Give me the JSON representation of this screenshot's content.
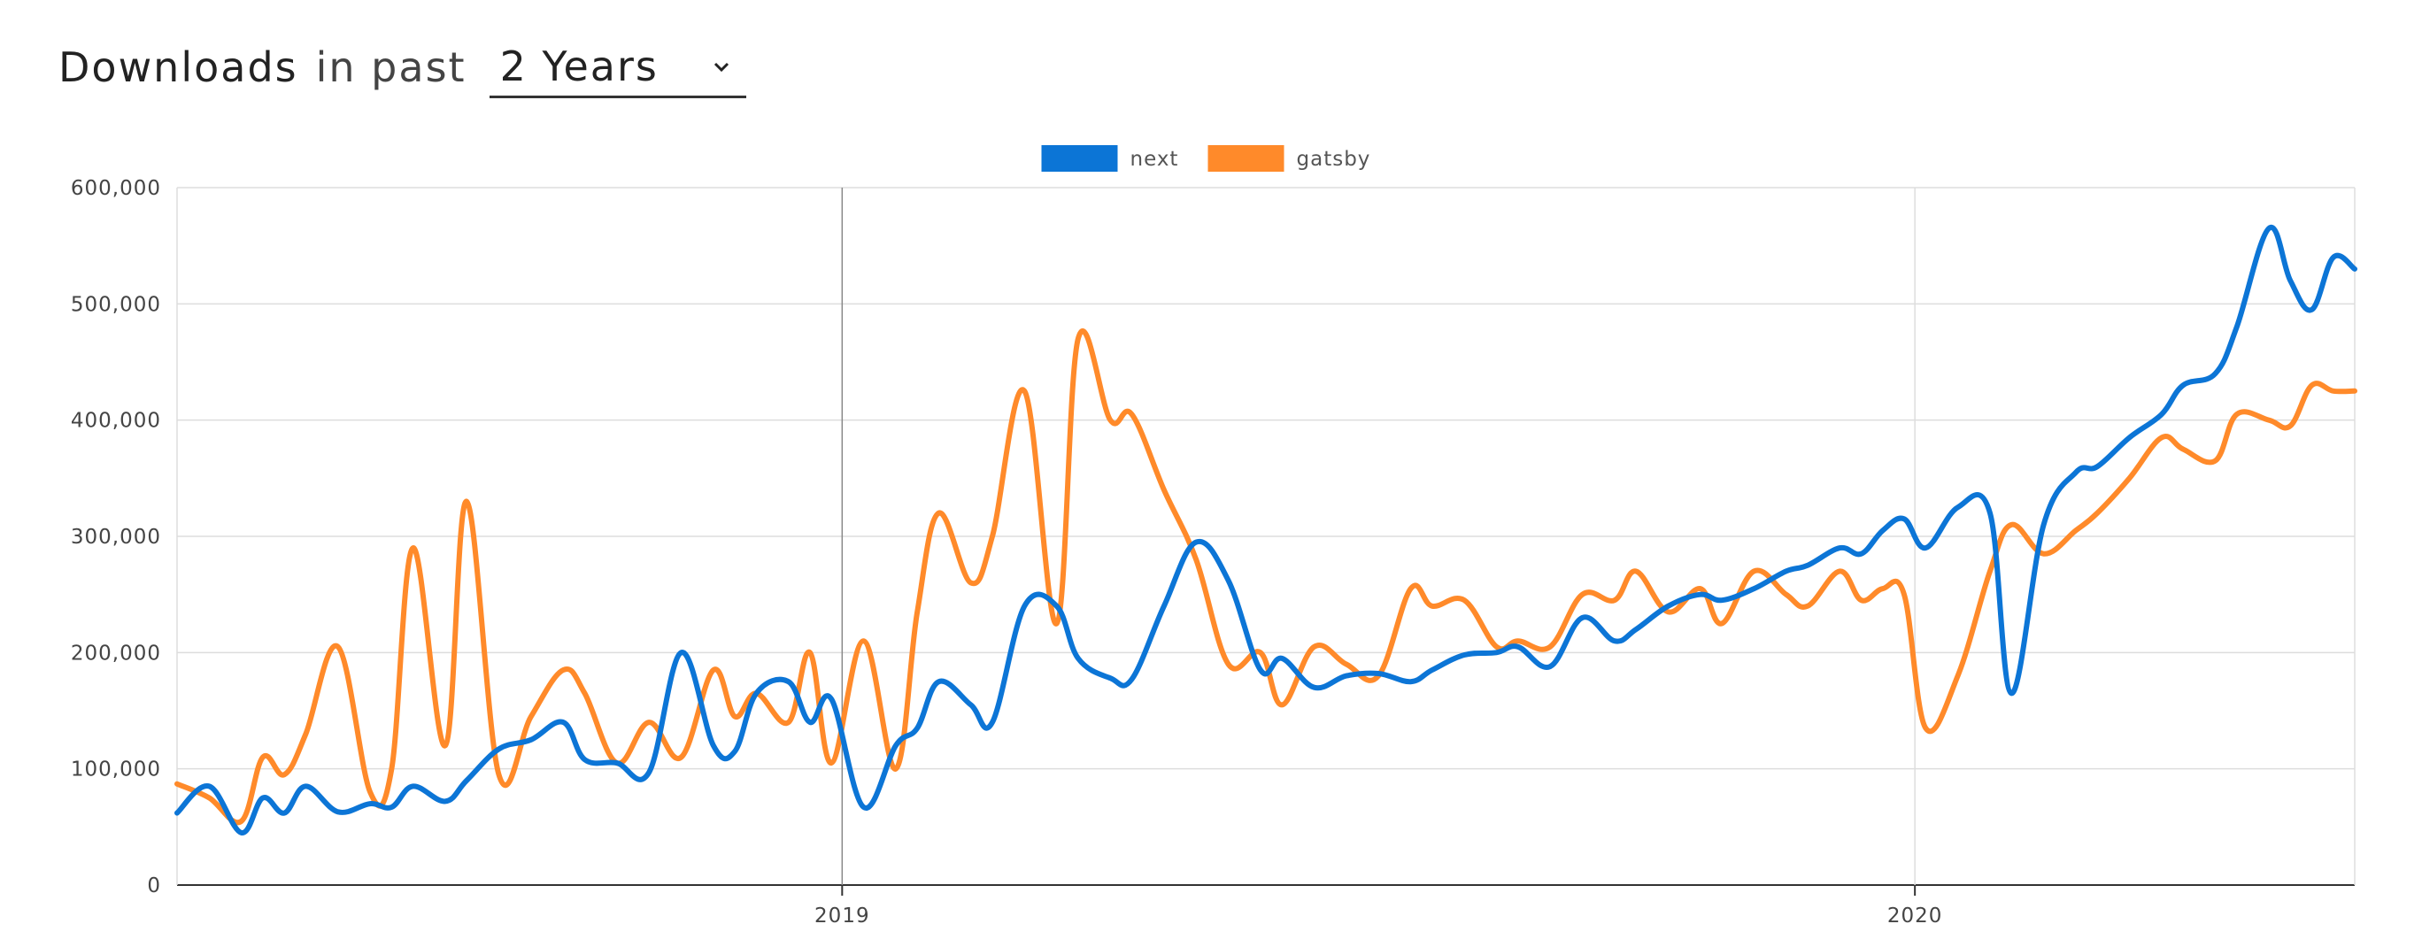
{
  "header": {
    "title": "Downloads",
    "subtitle": "in past",
    "period": {
      "selected": "2 Years",
      "options": [
        "2 Years"
      ]
    }
  },
  "chart_data": {
    "type": "line",
    "xlim": [
      2018.38,
      2020.41
    ],
    "ylim": [
      0,
      600000
    ],
    "grid": true,
    "legend_position": "top",
    "x_ticks": [
      {
        "value": 2019,
        "label": "2019"
      },
      {
        "value": 2020,
        "label": "2020"
      }
    ],
    "y_ticks": [
      {
        "value": 0,
        "label": "0"
      },
      {
        "value": 100000,
        "label": "100,000"
      },
      {
        "value": 200000,
        "label": "200,000"
      },
      {
        "value": 300000,
        "label": "300,000"
      },
      {
        "value": 400000,
        "label": "400,000"
      },
      {
        "value": 500000,
        "label": "500,000"
      },
      {
        "value": 600000,
        "label": "600,000"
      }
    ],
    "x": [
      2018.38,
      2018.41,
      2018.44,
      2018.46,
      2018.48,
      2018.5,
      2018.53,
      2018.56,
      2018.58,
      2018.6,
      2018.63,
      2018.65,
      2018.68,
      2018.71,
      2018.74,
      2018.76,
      2018.79,
      2018.82,
      2018.85,
      2018.88,
      2018.9,
      2018.92,
      2018.95,
      2018.97,
      2018.99,
      2019.02,
      2019.05,
      2019.07,
      2019.09,
      2019.12,
      2019.14,
      2019.17,
      2019.2,
      2019.22,
      2019.25,
      2019.27,
      2019.3,
      2019.33,
      2019.36,
      2019.39,
      2019.41,
      2019.44,
      2019.47,
      2019.5,
      2019.53,
      2019.55,
      2019.58,
      2019.61,
      2019.63,
      2019.66,
      2019.69,
      2019.72,
      2019.74,
      2019.77,
      2019.8,
      2019.82,
      2019.85,
      2019.88,
      2019.9,
      2019.93,
      2019.95,
      2019.97,
      2019.99,
      2020.01,
      2020.04,
      2020.07,
      2020.09,
      2020.12,
      2020.15,
      2020.17,
      2020.2,
      2020.23,
      2020.25,
      2020.28,
      2020.3,
      2020.33,
      2020.35,
      2020.37,
      2020.39,
      2020.41
    ],
    "series": [
      {
        "name": "next",
        "color": "#0c75d6",
        "values": [
          62000,
          85000,
          45000,
          75000,
          62000,
          85000,
          63000,
          70000,
          67000,
          85000,
          72000,
          90000,
          117000,
          125000,
          140000,
          108000,
          105000,
          97000,
          200000,
          120000,
          115000,
          165000,
          175000,
          140000,
          160000,
          67000,
          120000,
          135000,
          175000,
          155000,
          140000,
          240000,
          240000,
          195000,
          178000,
          177000,
          240000,
          295000,
          262000,
          185000,
          195000,
          170000,
          180000,
          182000,
          175000,
          185000,
          198000,
          200000,
          205000,
          188000,
          230000,
          210000,
          220000,
          240000,
          250000,
          245000,
          255000,
          270000,
          275000,
          290000,
          285000,
          305000,
          315000,
          290000,
          325000,
          320000,
          165000,
          310000,
          355000,
          360000,
          385000,
          405000,
          430000,
          440000,
          480000,
          565000,
          520000,
          495000,
          540000,
          530000
        ]
      },
      {
        "name": "gatsby",
        "color": "#ff8a2a",
        "values": [
          87000,
          75000,
          55000,
          110000,
          95000,
          130000,
          205000,
          80000,
          100000,
          290000,
          120000,
          330000,
          95000,
          145000,
          185000,
          165000,
          105000,
          140000,
          110000,
          185000,
          145000,
          165000,
          140000,
          200000,
          105000,
          210000,
          100000,
          235000,
          320000,
          260000,
          300000,
          425000,
          225000,
          470000,
          400000,
          405000,
          340000,
          280000,
          190000,
          200000,
          155000,
          205000,
          190000,
          180000,
          255000,
          240000,
          245000,
          205000,
          210000,
          205000,
          250000,
          245000,
          270000,
          235000,
          255000,
          225000,
          270000,
          250000,
          240000,
          270000,
          245000,
          255000,
          250000,
          135000,
          180000,
          270000,
          310000,
          285000,
          305000,
          320000,
          350000,
          385000,
          375000,
          365000,
          405000,
          400000,
          395000,
          430000,
          425000,
          425000
        ]
      }
    ]
  }
}
